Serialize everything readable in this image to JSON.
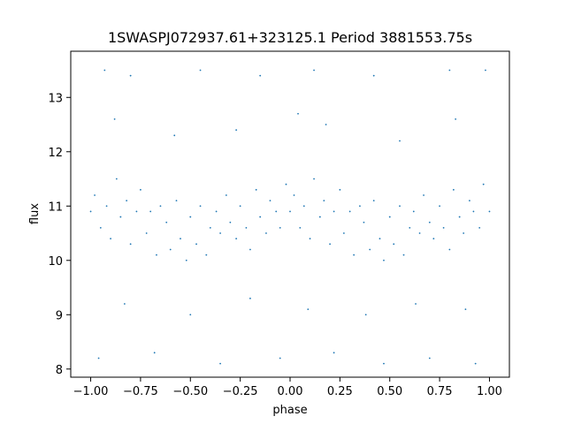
{
  "chart_data": {
    "type": "scatter",
    "title": "1SWASPJ072937.61+323125.1 Period 3881553.75s",
    "xlabel": "phase",
    "ylabel": "flux",
    "xlim": [
      -1.1,
      1.1
    ],
    "ylim": [
      7.85,
      13.85
    ],
    "x_ticks": [
      -1.0,
      -0.75,
      -0.5,
      -0.25,
      0.0,
      0.25,
      0.5,
      0.75,
      1.0
    ],
    "x_tick_labels": [
      "−1.00",
      "−0.75",
      "−0.50",
      "−0.25",
      "0.00",
      "0.25",
      "0.50",
      "0.75",
      "1.00"
    ],
    "y_ticks": [
      8,
      9,
      10,
      11,
      12,
      13
    ],
    "y_tick_labels": [
      "8",
      "9",
      "10",
      "11",
      "12",
      "13"
    ],
    "grid": false,
    "marker_color": "#1f77b4",
    "series": [
      {
        "points": [
          [
            -1.0,
            10.9
          ],
          [
            -0.98,
            11.2
          ],
          [
            -0.95,
            10.6
          ],
          [
            -0.92,
            11.0
          ],
          [
            -0.9,
            10.4
          ],
          [
            -0.87,
            11.5
          ],
          [
            -0.85,
            10.8
          ],
          [
            -0.82,
            11.1
          ],
          [
            -0.8,
            10.3
          ],
          [
            -0.77,
            10.9
          ],
          [
            -0.75,
            11.3
          ],
          [
            -0.72,
            10.5
          ],
          [
            -0.7,
            10.9
          ],
          [
            -0.67,
            10.1
          ],
          [
            -0.65,
            11.0
          ],
          [
            -0.62,
            10.7
          ],
          [
            -0.6,
            10.2
          ],
          [
            -0.57,
            11.1
          ],
          [
            -0.55,
            10.4
          ],
          [
            -0.52,
            10.0
          ],
          [
            -0.5,
            10.8
          ],
          [
            -0.47,
            10.3
          ],
          [
            -0.45,
            11.0
          ],
          [
            -0.42,
            10.1
          ],
          [
            -0.4,
            10.6
          ],
          [
            -0.37,
            10.9
          ],
          [
            -0.35,
            10.5
          ],
          [
            -0.32,
            11.2
          ],
          [
            -0.3,
            10.7
          ],
          [
            -0.27,
            10.4
          ],
          [
            -0.25,
            11.0
          ],
          [
            -0.22,
            10.6
          ],
          [
            -0.2,
            10.2
          ],
          [
            -0.17,
            11.3
          ],
          [
            -0.15,
            10.8
          ],
          [
            -0.12,
            10.5
          ],
          [
            -0.1,
            11.1
          ],
          [
            -0.07,
            10.9
          ],
          [
            -0.05,
            10.6
          ],
          [
            -0.02,
            11.4
          ],
          [
            0.0,
            10.9
          ],
          [
            0.02,
            11.2
          ],
          [
            0.05,
            10.6
          ],
          [
            0.07,
            11.0
          ],
          [
            0.1,
            10.4
          ],
          [
            0.12,
            11.5
          ],
          [
            0.15,
            10.8
          ],
          [
            0.17,
            11.1
          ],
          [
            0.2,
            10.3
          ],
          [
            0.22,
            10.9
          ],
          [
            0.25,
            11.3
          ],
          [
            0.27,
            10.5
          ],
          [
            0.3,
            10.9
          ],
          [
            0.32,
            10.1
          ],
          [
            0.35,
            11.0
          ],
          [
            0.37,
            10.7
          ],
          [
            0.4,
            10.2
          ],
          [
            0.42,
            11.1
          ],
          [
            0.45,
            10.4
          ],
          [
            0.47,
            10.0
          ],
          [
            0.5,
            10.8
          ],
          [
            0.52,
            10.3
          ],
          [
            0.55,
            11.0
          ],
          [
            0.57,
            10.1
          ],
          [
            0.6,
            10.6
          ],
          [
            0.62,
            10.9
          ],
          [
            0.65,
            10.5
          ],
          [
            0.67,
            11.2
          ],
          [
            0.7,
            10.7
          ],
          [
            0.72,
            10.4
          ],
          [
            0.75,
            11.0
          ],
          [
            0.77,
            10.6
          ],
          [
            0.8,
            10.2
          ],
          [
            0.82,
            11.3
          ],
          [
            0.85,
            10.8
          ],
          [
            0.87,
            10.5
          ],
          [
            0.9,
            11.1
          ],
          [
            0.92,
            10.9
          ],
          [
            0.95,
            10.6
          ],
          [
            0.97,
            11.4
          ],
          [
            1.0,
            10.9
          ],
          [
            -0.93,
            13.5
          ],
          [
            -0.8,
            13.4
          ],
          [
            -0.45,
            13.5
          ],
          [
            -0.15,
            13.4
          ],
          [
            0.12,
            13.5
          ],
          [
            0.42,
            13.4
          ],
          [
            0.8,
            13.5
          ],
          [
            0.98,
            13.5
          ],
          [
            -0.96,
            8.2
          ],
          [
            -0.68,
            8.3
          ],
          [
            -0.35,
            8.1
          ],
          [
            -0.05,
            8.2
          ],
          [
            0.22,
            8.3
          ],
          [
            0.47,
            8.1
          ],
          [
            0.7,
            8.2
          ],
          [
            0.93,
            8.1
          ],
          [
            -0.88,
            12.6
          ],
          [
            -0.58,
            12.3
          ],
          [
            -0.27,
            12.4
          ],
          [
            0.04,
            12.7
          ],
          [
            0.18,
            12.5
          ],
          [
            0.55,
            12.2
          ],
          [
            0.83,
            12.6
          ],
          [
            -0.83,
            9.2
          ],
          [
            -0.5,
            9.0
          ],
          [
            -0.2,
            9.3
          ],
          [
            0.09,
            9.1
          ],
          [
            0.38,
            9.0
          ],
          [
            0.63,
            9.2
          ],
          [
            0.88,
            9.1
          ]
        ]
      }
    ]
  }
}
